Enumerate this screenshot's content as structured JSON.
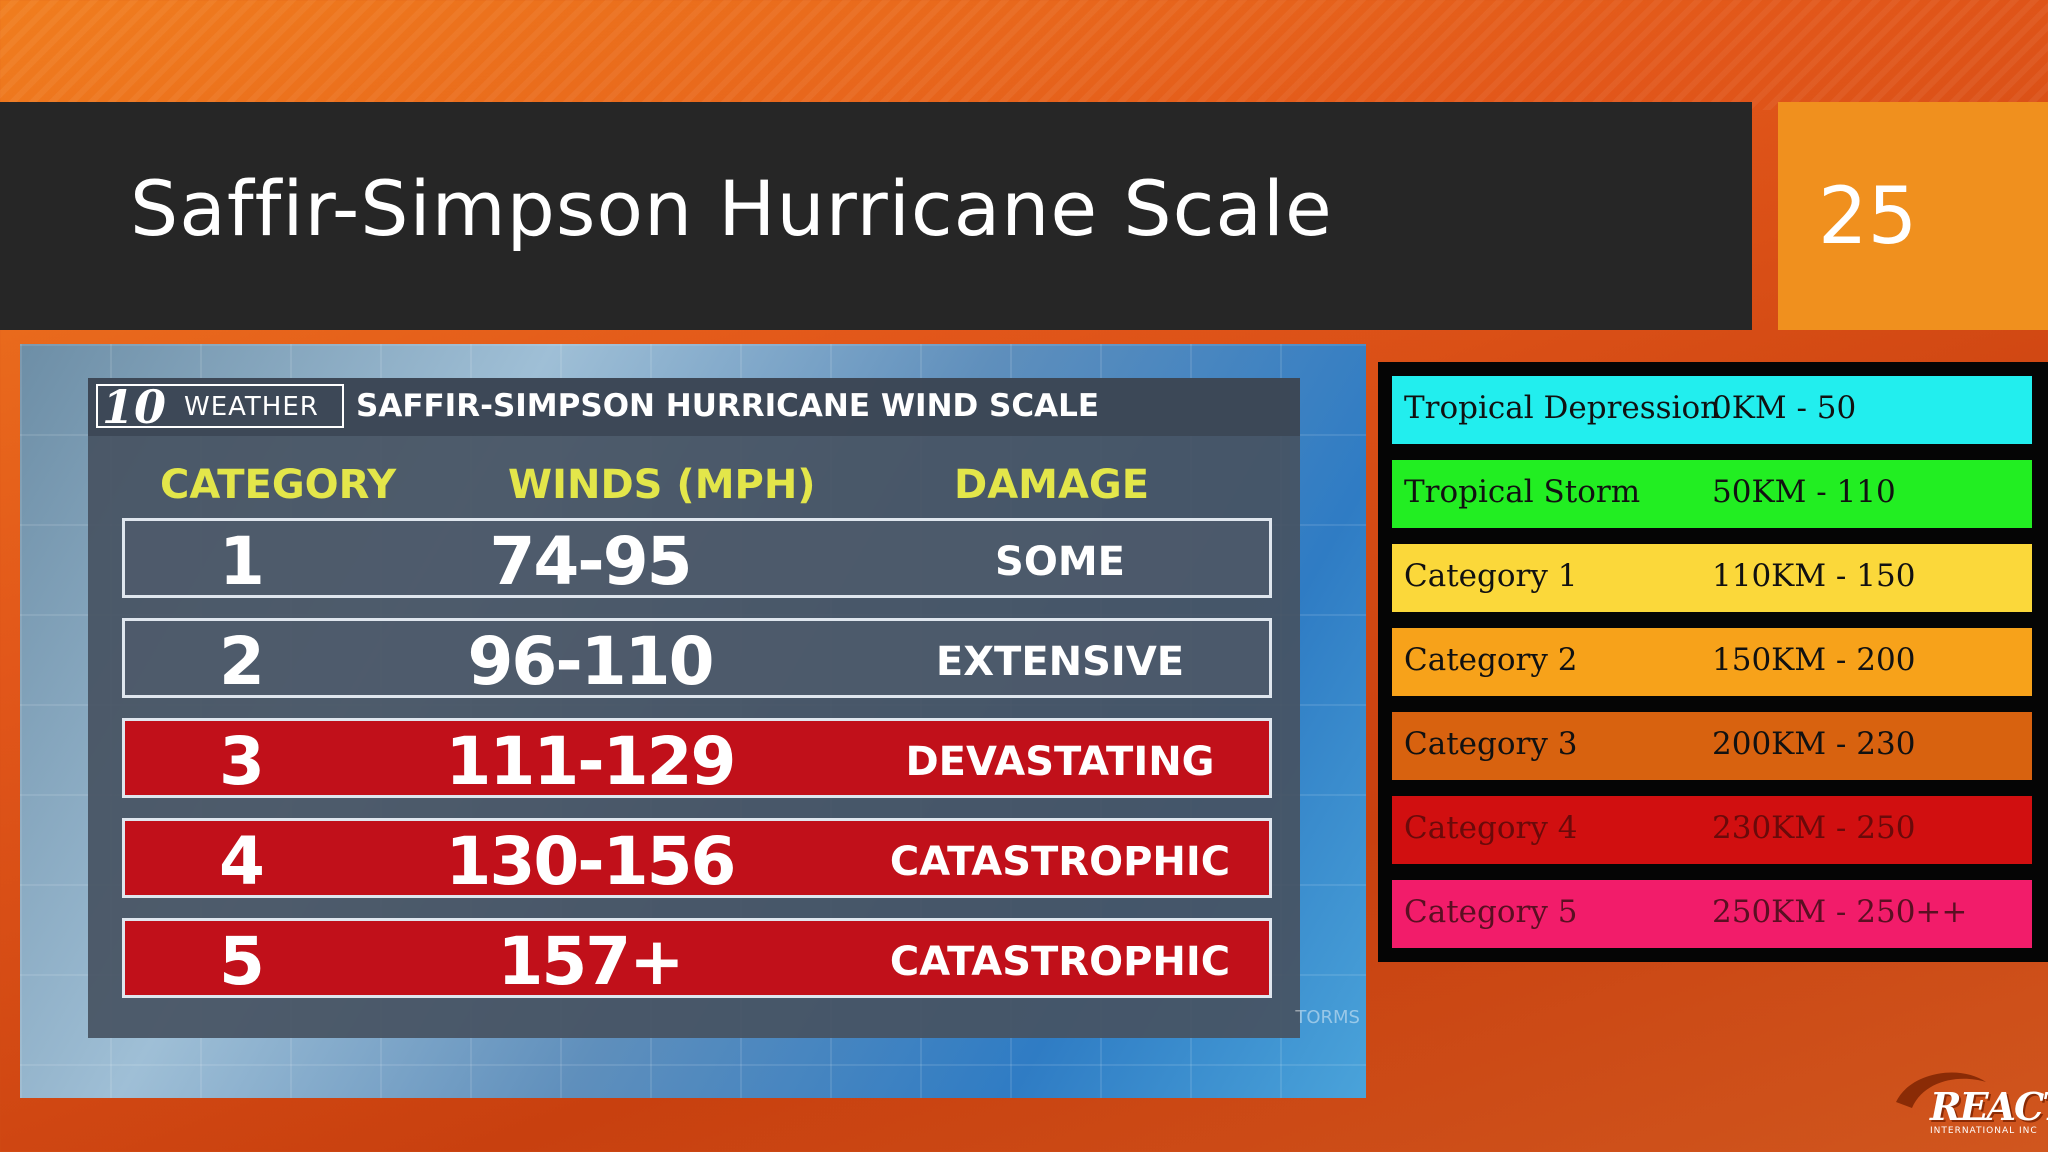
{
  "slide": {
    "title": "Saffir-Simpson Hurricane Scale",
    "page_number": "25"
  },
  "tv_graphic": {
    "logo_number": "10",
    "logo_word": "WEATHER",
    "title": "SAFFIR-SIMPSON HURRICANE WIND SCALE",
    "corner_text": "TORMS",
    "columns": {
      "category": "CATEGORY",
      "winds": "WINDS (MPH)",
      "damage": "DAMAGE"
    },
    "rows": [
      {
        "category": "1",
        "winds": "74-95",
        "damage": "SOME",
        "style": "grey"
      },
      {
        "category": "2",
        "winds": "96-110",
        "damage": "EXTENSIVE",
        "style": "grey"
      },
      {
        "category": "3",
        "winds": "111-129",
        "damage": "DEVASTATING",
        "style": "red"
      },
      {
        "category": "4",
        "winds": "130-156",
        "damage": "CATASTROPHIC",
        "style": "red"
      },
      {
        "category": "5",
        "winds": "157+",
        "damage": "CATASTROPHIC",
        "style": "red"
      }
    ]
  },
  "legend": {
    "rows": [
      {
        "name": "Tropical Depression",
        "range": "0KM - 50",
        "color": "#22eeee",
        "text_color": "#111111"
      },
      {
        "name": "Tropical Storm",
        "range": "50KM - 110",
        "color": "#22ee22",
        "text_color": "#111111"
      },
      {
        "name": "Category 1",
        "range": "110KM - 150",
        "color": "#fbd83a",
        "text_color": "#111111"
      },
      {
        "name": "Category 2",
        "range": "150KM - 200",
        "color": "#f7a21a",
        "text_color": "#111111"
      },
      {
        "name": "Category 3",
        "range": "200KM - 230",
        "color": "#d8620f",
        "text_color": "#111111"
      },
      {
        "name": "Category 4",
        "range": "230KM - 250",
        "color": "#d10f10",
        "text_color": "#6a0a0a"
      },
      {
        "name": "Category 5",
        "range": "250KM - 250++",
        "color": "#f21c6a",
        "text_color": "#5a0f22"
      }
    ]
  },
  "brand_logo": {
    "word": "REACT",
    "subtitle": "INTERNATIONAL INC"
  }
}
